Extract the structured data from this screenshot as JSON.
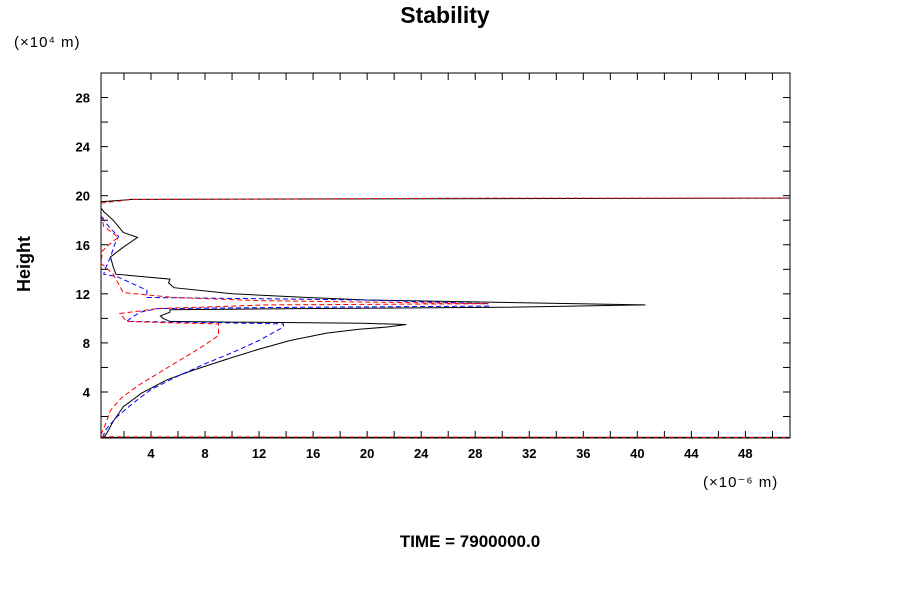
{
  "chart_data": {
    "type": "line",
    "title": "Stability",
    "ylabel": "Height",
    "y_unit": "(×10⁴ m)",
    "x_unit": "(×10⁻⁶ m)",
    "footer": "TIME = 7900000.0",
    "xlim": [
      0.3,
      51.3
    ],
    "ylim": [
      0.25,
      30
    ],
    "xticks": [
      4,
      8,
      12,
      16,
      20,
      24,
      28,
      32,
      36,
      40,
      44,
      48
    ],
    "yticks": [
      4,
      8,
      12,
      16,
      20,
      24,
      28
    ],
    "grid": false,
    "series": [
      {
        "name": "black-solid",
        "color": "#000000",
        "dash": "",
        "segments": [
          [
            [
              0.5,
              0.3
            ],
            [
              0.74,
              0.65
            ],
            [
              1.2,
              1.6
            ],
            [
              1.95,
              2.8
            ],
            [
              3.3,
              3.9
            ],
            [
              5.2,
              5.0
            ],
            [
              7.2,
              5.8
            ],
            [
              9.4,
              6.6
            ],
            [
              12,
              7.5
            ],
            [
              14.3,
              8.2
            ],
            [
              17,
              8.8
            ],
            [
              19.3,
              9.1
            ],
            [
              21.5,
              9.3
            ],
            [
              22.9,
              9.5
            ],
            [
              19.7,
              9.6
            ],
            [
              10,
              9.7
            ],
            [
              5.4,
              9.75
            ],
            [
              4.9,
              10.0
            ],
            [
              4.7,
              10.2
            ],
            [
              5.4,
              10.5
            ],
            [
              5.4,
              10.7
            ],
            [
              15,
              10.8
            ],
            [
              30,
              10.9
            ],
            [
              40.6,
              11.1
            ],
            [
              30,
              11.3
            ],
            [
              20,
              11.5
            ],
            [
              15.6,
              11.7
            ],
            [
              10,
              12.0
            ],
            [
              5.7,
              12.5
            ],
            [
              5.3,
              12.9
            ],
            [
              5.4,
              13.2
            ],
            [
              1.4,
              13.6
            ],
            [
              1.2,
              14.2
            ],
            [
              1.0,
              15.0
            ],
            [
              1.95,
              15.8
            ],
            [
              3.0,
              16.6
            ],
            [
              1.95,
              17.0
            ],
            [
              1.2,
              18.0
            ],
            [
              0.5,
              18.7
            ],
            [
              0.3,
              19.0
            ]
          ],
          [
            [
              0.3,
              19.5
            ],
            [
              2.6,
              19.7
            ],
            [
              51.3,
              19.8
            ]
          ],
          [
            [
              0.3,
              0.3
            ],
            [
              51.3,
              0.3
            ]
          ]
        ]
      },
      {
        "name": "blue-dashed",
        "color": "#0000ff",
        "dash": "5,3",
        "segments": [
          [
            [
              0.4,
              0.3
            ],
            [
              0.7,
              1.0
            ],
            [
              1.5,
              2.0
            ],
            [
              2.8,
              3.2
            ],
            [
              4.0,
              4.2
            ],
            [
              6.0,
              5.3
            ],
            [
              8.0,
              6.3
            ],
            [
              10,
              7.2
            ],
            [
              12,
              8.2
            ],
            [
              13.8,
              9.3
            ],
            [
              13.8,
              9.55
            ],
            [
              9,
              9.65
            ],
            [
              2.2,
              9.75
            ],
            [
              2.6,
              10.1
            ],
            [
              3.2,
              10.5
            ],
            [
              4.5,
              10.8
            ],
            [
              15,
              10.9
            ],
            [
              29,
              11.0
            ],
            [
              29,
              11.2
            ],
            [
              20,
              11.5
            ],
            [
              12,
              11.6
            ],
            [
              3.7,
              11.7
            ],
            [
              3.7,
              12.3
            ],
            [
              1.5,
              13.4
            ],
            [
              0.5,
              13.6
            ],
            [
              0.6,
              14.0
            ],
            [
              1.0,
              15.0
            ],
            [
              1.3,
              16.0
            ],
            [
              1.6,
              16.7
            ],
            [
              1.0,
              17.3
            ],
            [
              0.5,
              18.0
            ],
            [
              0.3,
              18.6
            ]
          ]
        ]
      },
      {
        "name": "red-dashed",
        "color": "#ff0000",
        "dash": "5,3",
        "segments": [
          [
            [
              0.3,
              0.5
            ],
            [
              0.6,
              1.3
            ],
            [
              1.0,
              2.5
            ],
            [
              1.8,
              3.5
            ],
            [
              3.0,
              4.5
            ],
            [
              4.5,
              5.5
            ],
            [
              6.0,
              6.5
            ],
            [
              7.5,
              7.5
            ],
            [
              9.0,
              8.6
            ],
            [
              9.0,
              9.55
            ],
            [
              5,
              9.65
            ],
            [
              2.2,
              9.75
            ],
            [
              1.7,
              10.4
            ],
            [
              4.5,
              10.8
            ],
            [
              12.6,
              11.1
            ],
            [
              29,
              11.2
            ],
            [
              12,
              11.45
            ],
            [
              5.7,
              11.7
            ],
            [
              1.95,
              12.1
            ],
            [
              1.7,
              12.6
            ],
            [
              1.2,
              13.6
            ],
            [
              0.3,
              14.5
            ],
            [
              0.4,
              15.5
            ],
            [
              1.2,
              16.3
            ],
            [
              1.6,
              16.6
            ],
            [
              0.5,
              17.5
            ],
            [
              0.3,
              18.5
            ]
          ],
          [
            [
              0.3,
              19.4
            ],
            [
              2.6,
              19.7
            ],
            [
              30,
              19.8
            ],
            [
              51.3,
              19.8
            ]
          ],
          [
            [
              0.3,
              0.35
            ],
            [
              51.3,
              0.3
            ]
          ]
        ]
      }
    ]
  }
}
